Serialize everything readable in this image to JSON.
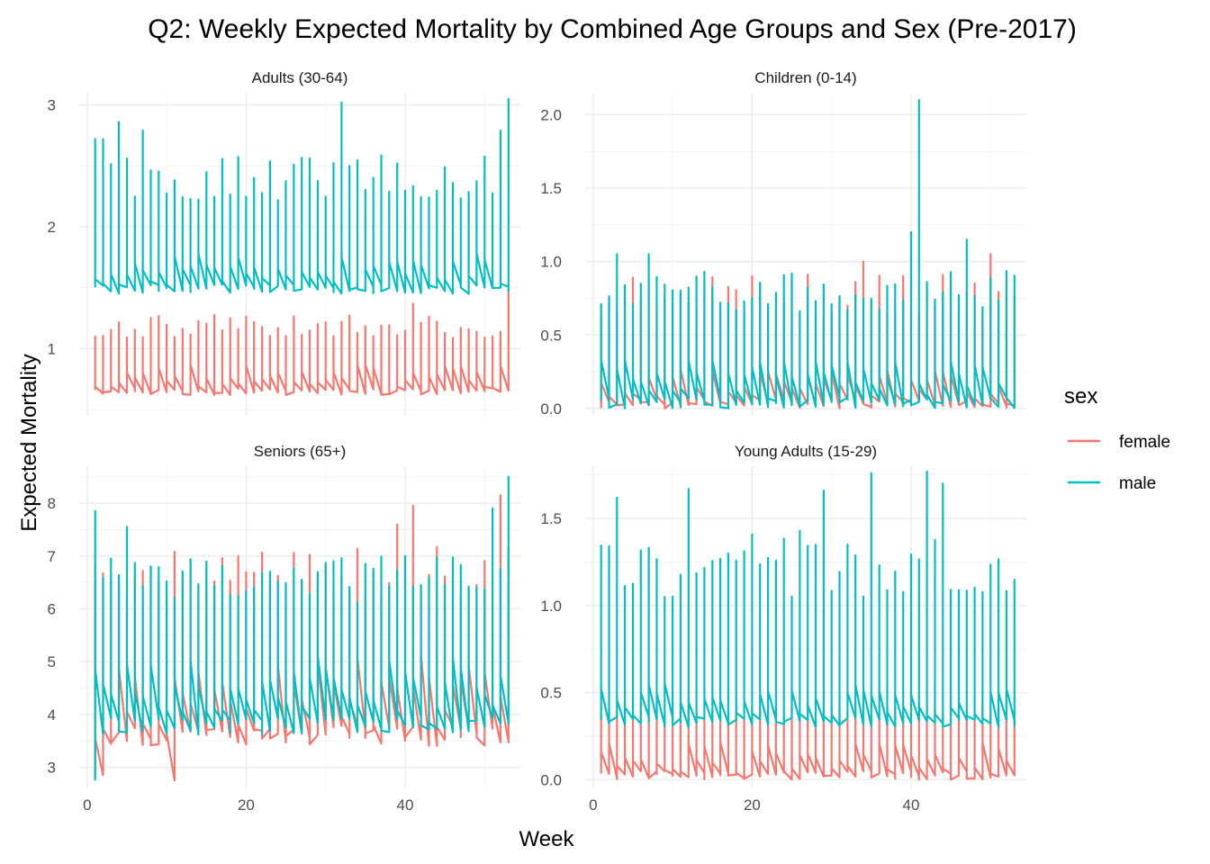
{
  "chart_data": {
    "type": "line",
    "title": "Q2: Weekly Expected Mortality by Combined Age Groups and Sex (Pre-2017)",
    "xlabel": "Week",
    "ylabel": "Expected Mortality",
    "legend": {
      "title": "sex",
      "placement": "right",
      "entries": [
        {
          "name": "female",
          "color": "#F8766D"
        },
        {
          "name": "male",
          "color": "#00BFC4"
        }
      ]
    },
    "grid": true,
    "facets": [
      {
        "label": "Adults (30-64)",
        "xlim": [
          -1,
          54.5
        ],
        "ylim": [
          0.45,
          3.1
        ],
        "x_ticks": [
          0,
          20,
          40
        ],
        "y_ticks": [
          1,
          2,
          3
        ],
        "y_tick_labels": [
          "1",
          "2",
          "3"
        ],
        "show_x_tick_labels": false,
        "female": {
          "low": 0.62,
          "high": 1.28,
          "mid": 0.85,
          "seed": 11,
          "spikes": [
            [
              53,
              1.48
            ],
            [
              41,
              1.37
            ]
          ]
        },
        "male": {
          "low": 1.45,
          "high": 2.6,
          "mid": 1.75,
          "seed": 23,
          "spikes": [
            [
              53,
              3.05
            ],
            [
              32,
              3.02
            ],
            [
              4,
              2.86
            ],
            [
              2,
              2.72
            ],
            [
              1,
              2.72
            ],
            [
              7,
              2.79
            ],
            [
              52,
              2.79
            ]
          ]
        }
      },
      {
        "label": "Children (0-14)",
        "xlim": [
          -1,
          54.5
        ],
        "ylim": [
          -0.05,
          2.15
        ],
        "x_ticks": [
          0,
          20,
          40
        ],
        "y_ticks": [
          0.0,
          0.5,
          1.0,
          1.5,
          2.0
        ],
        "y_tick_labels": [
          "0.0",
          "0.5",
          "1.0",
          "1.5",
          "2.0"
        ],
        "show_x_tick_labels": false,
        "female": {
          "low": 0.0,
          "high": 0.92,
          "mid": 0.25,
          "seed": 37,
          "spikes": [
            [
              50,
              1.05
            ],
            [
              34,
              1.0
            ],
            [
              39,
              0.9
            ]
          ]
        },
        "male": {
          "low": 0.0,
          "high": 0.95,
          "mid": 0.3,
          "seed": 41,
          "spikes": [
            [
              41,
              2.1
            ],
            [
              40,
              1.2
            ],
            [
              47,
              1.15
            ],
            [
              7,
              1.05
            ],
            [
              3,
              1.05
            ]
          ]
        }
      },
      {
        "label": "Seniors (65+)",
        "xlim": [
          -1,
          54.5
        ],
        "ylim": [
          2.6,
          8.7
        ],
        "x_ticks": [
          0,
          20,
          40
        ],
        "y_ticks": [
          3,
          4,
          5,
          6,
          7,
          8
        ],
        "y_tick_labels": [
          "3",
          "4",
          "5",
          "6",
          "7",
          "8"
        ],
        "show_x_tick_labels": true,
        "female": {
          "low": 3.4,
          "high": 7.2,
          "mid": 5.0,
          "seed": 53,
          "spikes": [
            [
              52,
              8.15
            ],
            [
              41,
              7.95
            ],
            [
              39,
              7.6
            ],
            [
              11,
              2.75
            ],
            [
              1,
              2.8
            ],
            [
              2,
              2.85
            ]
          ]
        },
        "male": {
          "low": 3.6,
          "high": 7.0,
          "mid": 5.0,
          "seed": 61,
          "spikes": [
            [
              53,
              8.5
            ],
            [
              1,
              7.85
            ],
            [
              51,
              7.9
            ],
            [
              5,
              7.55
            ],
            [
              1,
              2.75
            ]
          ]
        }
      },
      {
        "label": "Young Adults (15-29)",
        "xlim": [
          -1,
          54.5
        ],
        "ylim": [
          -0.05,
          1.8
        ],
        "x_ticks": [
          0,
          20,
          40
        ],
        "y_ticks": [
          0.0,
          0.5,
          1.0,
          1.5
        ],
        "y_tick_labels": [
          "0.0",
          "0.5",
          "1.0",
          "1.5"
        ],
        "show_x_tick_labels": true,
        "female": {
          "low": 0.0,
          "high": 0.45,
          "mid": 0.2,
          "seed": 71,
          "spikes": [
            [
              40,
              0.98
            ],
            [
              52,
              0.5
            ]
          ]
        },
        "male": {
          "low": 0.3,
          "high": 1.45,
          "mid": 0.55,
          "seed": 83,
          "spikes": [
            [
              35,
              1.76
            ],
            [
              42,
              1.77
            ],
            [
              12,
              1.67
            ],
            [
              3,
              1.62
            ],
            [
              44,
              1.7
            ],
            [
              29,
              1.66
            ]
          ]
        }
      }
    ]
  }
}
